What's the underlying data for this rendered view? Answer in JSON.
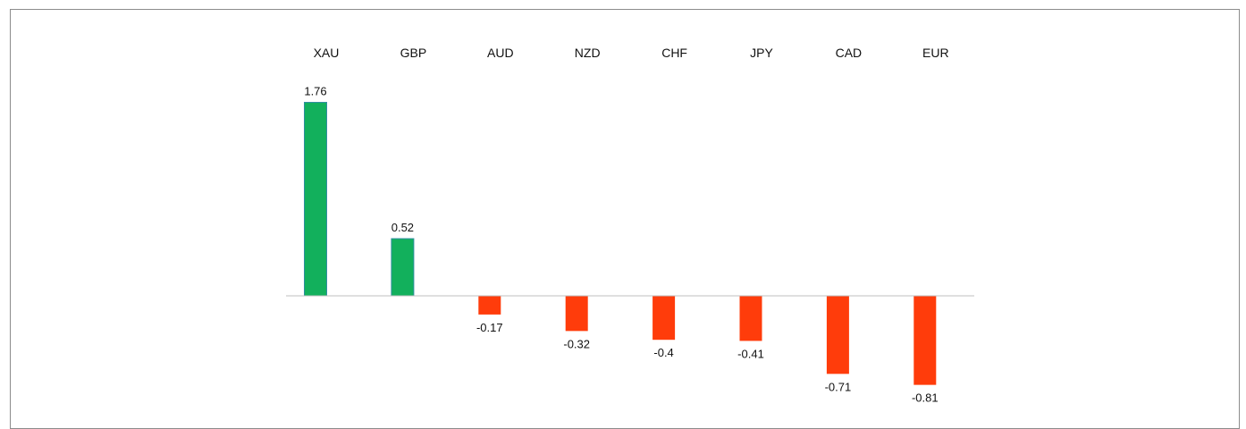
{
  "chart_data": {
    "type": "bar",
    "title": "",
    "xlabel": "",
    "ylabel": "",
    "categories": [
      "XAU",
      "GBP",
      "AUD",
      "NZD",
      "CHF",
      "JPY",
      "CAD",
      "EUR"
    ],
    "values": [
      1.76,
      0.52,
      -0.17,
      -0.32,
      -0.4,
      -0.41,
      -0.71,
      -0.81
    ],
    "value_labels": [
      "1.76",
      "0.52",
      "-0.17",
      "-0.32",
      "-0.4",
      "-0.41",
      "-0.71",
      "-0.81"
    ],
    "category_axis_position": "top",
    "grid": false,
    "legend": "none",
    "colors": {
      "positive": "#12b05c",
      "negative": "#ff3c0b",
      "axis": "#bfbfbf"
    }
  }
}
